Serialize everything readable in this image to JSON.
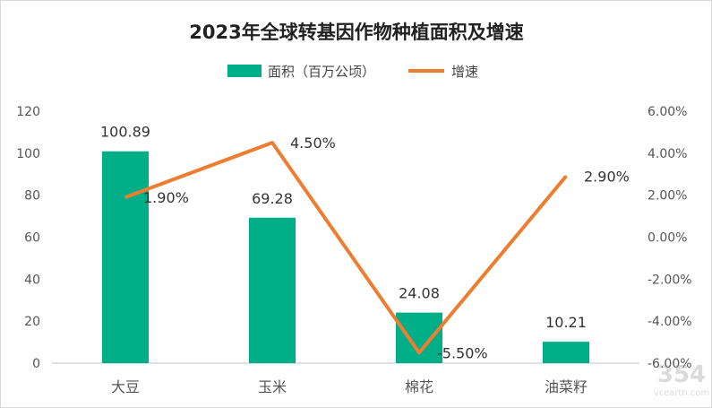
{
  "chart_data": {
    "type": "bar+line",
    "title": "2023年全球转基因作物种植面积及增速",
    "categories": [
      "大豆",
      "玉米",
      "棉花",
      "油菜籽"
    ],
    "series": [
      {
        "name": "面积（百万公顷）",
        "type": "bar",
        "axis": "left",
        "values": [
          100.89,
          69.28,
          24.08,
          10.21
        ],
        "labels": [
          "100.89",
          "69.28",
          "24.08",
          "10.21"
        ],
        "color": "#00AE87"
      },
      {
        "name": "增速",
        "type": "line",
        "axis": "right",
        "values": [
          1.9,
          4.5,
          -5.5,
          2.9
        ],
        "labels": [
          "1.90%",
          "4.50%",
          "-5.50%",
          "2.90%"
        ],
        "color": "#ED7D31"
      }
    ],
    "left_axis": {
      "ylim": [
        0,
        120
      ],
      "ticks": [
        "0",
        "20",
        "40",
        "60",
        "80",
        "100",
        "120"
      ]
    },
    "right_axis": {
      "ylim": [
        -6,
        6
      ],
      "ticks": [
        "-6.00%",
        "-4.00%",
        "-2.00%",
        "0.00%",
        "2.00%",
        "4.00%",
        "6.00%"
      ]
    },
    "grid": false,
    "legend": "top"
  },
  "watermark": "354 vcearth.com"
}
